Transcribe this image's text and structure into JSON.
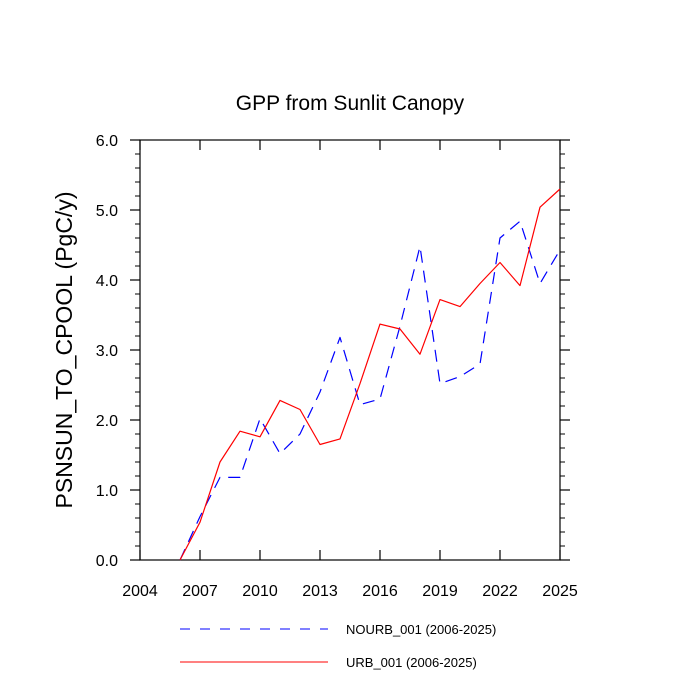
{
  "chart_data": {
    "type": "line",
    "title": "GPP from Sunlit Canopy",
    "xlabel": "",
    "ylabel": "PSNSUN_TO_CPOOL  (PgC/y)",
    "xlim": [
      2004,
      2025
    ],
    "ylim": [
      0,
      6
    ],
    "xticks": [
      2004,
      2007,
      2010,
      2013,
      2016,
      2019,
      2022,
      2025
    ],
    "xtick_labels": [
      "2004",
      "2007",
      "2010",
      "2013",
      "2016",
      "2019",
      "2022",
      "2025"
    ],
    "yticks": [
      0,
      1,
      2,
      3,
      4,
      5,
      6
    ],
    "ytick_labels": [
      "0.0",
      "1.0",
      "2.0",
      "3.0",
      "4.0",
      "5.0",
      "6.0"
    ],
    "grid": false,
    "legend_position": "bottom",
    "x": [
      2006,
      2007,
      2008,
      2009,
      2010,
      2011,
      2012,
      2013,
      2014,
      2015,
      2016,
      2017,
      2018,
      2019,
      2020,
      2021,
      2022,
      2023,
      2024,
      2025
    ],
    "series": [
      {
        "name": "NOURB_001 (2006-2025)",
        "color": "#0000ff",
        "dash": "dashed",
        "values": [
          0.0,
          0.62,
          1.18,
          1.18,
          2.02,
          1.52,
          1.8,
          2.4,
          3.18,
          2.22,
          2.3,
          3.34,
          4.48,
          2.52,
          2.62,
          2.8,
          4.6,
          4.84,
          3.95,
          4.43
        ]
      },
      {
        "name": "URB_001 (2006-2025)",
        "color": "#ff0000",
        "dash": "solid",
        "values": [
          0.0,
          0.54,
          1.4,
          1.84,
          1.76,
          2.28,
          2.15,
          1.65,
          1.73,
          2.52,
          3.37,
          3.3,
          2.94,
          3.72,
          3.62,
          3.95,
          4.25,
          3.92,
          5.04,
          5.3
        ]
      }
    ]
  }
}
